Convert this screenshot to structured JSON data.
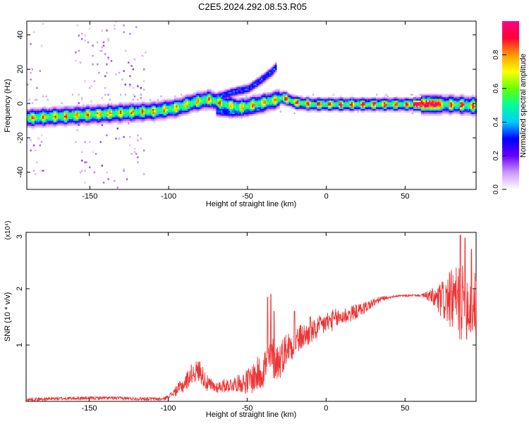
{
  "title": "C2E5.2024.292.08.53.R05",
  "chart_data": [
    {
      "type": "heatmap",
      "title": "",
      "xlabel": "Height of straight line (km)",
      "ylabel": "Frequency (Hz)",
      "xlim": [
        -190,
        95
      ],
      "ylim": [
        -50,
        48
      ],
      "xticks": [
        -150,
        -100,
        -50,
        0,
        50
      ],
      "yticks": [
        -40,
        -20,
        0,
        20,
        40
      ],
      "colorbar": {
        "label": "Normalized spectral amplitude",
        "range": [
          0,
          1
        ],
        "ticks": [
          "0.0",
          "0.2",
          "0.4",
          "0.6",
          "0.8"
        ],
        "tick_values": [
          0,
          0.2,
          0.4,
          0.6,
          0.8
        ],
        "colors": [
          "#ffffff",
          "#cc99ff",
          "#6600ff",
          "#0000ff",
          "#00ccff",
          "#00ff99",
          "#66ff00",
          "#ffff00",
          "#ff9900",
          "#ff0033",
          "#ff0088"
        ]
      },
      "ridges": [
        {
          "name": "main",
          "points": [
            [
              -190,
              -8
            ],
            [
              -170,
              -7
            ],
            [
              -150,
              -6
            ],
            [
              -130,
              -5
            ],
            [
              -110,
              -4
            ],
            [
              -95,
              -2
            ],
            [
              -85,
              1
            ],
            [
              -75,
              3
            ],
            [
              -65,
              0
            ],
            [
              -55,
              -2
            ],
            [
              -45,
              0
            ],
            [
              -35,
              2
            ],
            [
              -28,
              4
            ],
            [
              -20,
              1
            ],
            [
              -10,
              0
            ],
            [
              0,
              0
            ],
            [
              20,
              0
            ],
            [
              40,
              0
            ],
            [
              55,
              0
            ],
            [
              65,
              0
            ],
            [
              80,
              0
            ],
            [
              95,
              -1
            ]
          ]
        },
        {
          "name": "upper",
          "points": [
            [
              -70,
              4
            ],
            [
              -60,
              7
            ],
            [
              -50,
              9
            ],
            [
              -42,
              14
            ],
            [
              -35,
              19
            ],
            [
              -32,
              22
            ]
          ]
        },
        {
          "name": "lower",
          "points": [
            [
              -70,
              -4
            ],
            [
              -60,
              -5
            ],
            [
              -50,
              -4
            ],
            [
              -40,
              -2
            ]
          ]
        }
      ]
    },
    {
      "type": "line",
      "title": "",
      "xlabel": "Height of straight line (km)",
      "ylabel": "SNR (10 * v/v)",
      "scale_label": "(x10⁴)",
      "xlim": [
        -190,
        95
      ],
      "ylim": [
        0,
        3
      ],
      "xticks": [
        -150,
        -100,
        -50,
        0,
        50
      ],
      "yticks": [
        1,
        2,
        3
      ],
      "series_color": "#ee3333",
      "envelope": [
        [
          -190,
          0.03
        ],
        [
          -170,
          0.05
        ],
        [
          -140,
          0.06
        ],
        [
          -120,
          0.05
        ],
        [
          -103,
          0.04
        ],
        [
          -98,
          0.12
        ],
        [
          -90,
          0.3
        ],
        [
          -85,
          0.5
        ],
        [
          -80,
          0.55
        ],
        [
          -75,
          0.3
        ],
        [
          -70,
          0.25
        ],
        [
          -60,
          0.3
        ],
        [
          -50,
          0.35
        ],
        [
          -42,
          0.5
        ],
        [
          -37,
          0.7
        ],
        [
          -35,
          0.8
        ],
        [
          -30,
          0.7
        ],
        [
          -25,
          0.95
        ],
        [
          -20,
          1.05
        ],
        [
          -15,
          1.15
        ],
        [
          -10,
          1.2
        ],
        [
          -5,
          1.3
        ],
        [
          0,
          1.4
        ],
        [
          5,
          1.45
        ],
        [
          10,
          1.5
        ],
        [
          20,
          1.6
        ],
        [
          30,
          1.75
        ],
        [
          35,
          1.82
        ],
        [
          45,
          1.87
        ],
        [
          55,
          1.88
        ],
        [
          60,
          1.88
        ],
        [
          65,
          1.87
        ],
        [
          70,
          1.8
        ],
        [
          80,
          1.8
        ],
        [
          90,
          1.7
        ],
        [
          95,
          1.7
        ]
      ],
      "noise_amplitude": [
        [
          -190,
          0.03
        ],
        [
          -100,
          0.03
        ],
        [
          -90,
          0.15
        ],
        [
          -80,
          0.2
        ],
        [
          -70,
          0.1
        ],
        [
          -55,
          0.15
        ],
        [
          -45,
          0.3
        ],
        [
          -35,
          0.4
        ],
        [
          -25,
          0.3
        ],
        [
          -10,
          0.2
        ],
        [
          0,
          0.2
        ],
        [
          15,
          0.15
        ],
        [
          30,
          0.08
        ],
        [
          40,
          0.02
        ],
        [
          60,
          0.02
        ],
        [
          65,
          0.1
        ],
        [
          75,
          0.4
        ],
        [
          85,
          0.7
        ],
        [
          95,
          0.6
        ]
      ],
      "spikes": [
        [
          -37,
          1.85
        ],
        [
          -35,
          1.9
        ],
        [
          -33,
          1.6
        ],
        [
          -20,
          1.6
        ],
        [
          -10,
          1.5
        ],
        [
          85,
          2.95
        ],
        [
          88,
          2.9
        ],
        [
          92,
          2.7
        ]
      ]
    }
  ]
}
